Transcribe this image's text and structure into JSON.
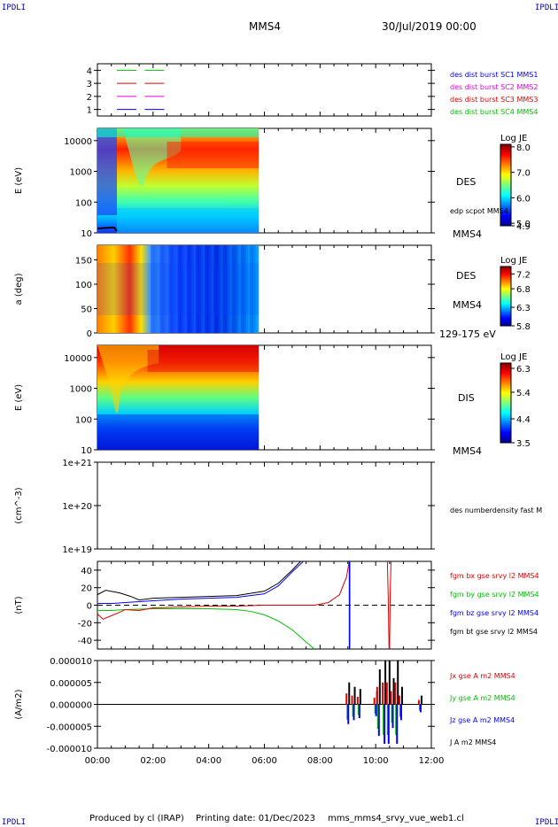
{
  "header": {
    "corner_tl": "IPDLI",
    "corner_tr": "IPDLI",
    "corner_bl": "IPDLI",
    "corner_br": "IPDLI",
    "spacecraft": "MMS4",
    "date": "30/Jul/2019 00:00"
  },
  "footer": {
    "produced_by": "Produced by cl (IRAP)",
    "printing_date": "Printing date: 01/Dec/2023",
    "file": "mms_mms4_srvy_vue_web1.cl"
  },
  "time_axis": {
    "ticks": [
      "00:00",
      "02:00",
      "04:00",
      "06:00",
      "08:00",
      "10:00",
      "12:00"
    ],
    "range_hours": [
      0,
      12
    ]
  },
  "colors": {
    "blue": "#0000ff",
    "magenta": "#e000e0",
    "red": "#e00000",
    "green": "#00c000",
    "black": "#000000"
  },
  "chart_data": [
    {
      "type": "line",
      "panel": "burst",
      "y_ticks": [
        "4",
        "3",
        "2",
        "1"
      ],
      "ylim": [
        0.5,
        4.5
      ],
      "legend": [
        {
          "name": "des dist burst SC1 MMS1",
          "color": "#0000ff",
          "level": 1
        },
        {
          "name": "des dist burst SC2 MMS2",
          "color": "#e000e0",
          "level": 2
        },
        {
          "name": "des dist burst SC3 MMS3",
          "color": "#e00000",
          "level": 3
        },
        {
          "name": "des dist burst SC4 MMS4",
          "color": "#00c000",
          "level": 4
        }
      ],
      "segments_hours": [
        [
          0.7,
          1.4
        ],
        [
          1.7,
          2.4
        ]
      ]
    },
    {
      "type": "heatmap",
      "panel": "des-energy",
      "ylabel": "E (eV)",
      "yscale": "log",
      "y_ticks": [
        "10000",
        "1000",
        "100",
        "10"
      ],
      "ylim": [
        10,
        25000
      ],
      "data_end_hours": 5.8,
      "colorbar": {
        "title": "Log JE",
        "ticks": [
          "8.0",
          "7.0",
          "6.0",
          "5.0",
          "4.9"
        ],
        "range": [
          4.9,
          8.1
        ]
      },
      "right_labels": [
        "DES",
        "edp scpot MMS4",
        "MMS4"
      ]
    },
    {
      "type": "heatmap",
      "panel": "des-pitch",
      "ylabel": "a (deg)",
      "y_ticks": [
        "150",
        "100",
        "50",
        "0"
      ],
      "ylim": [
        0,
        180
      ],
      "data_end_hours": 5.8,
      "colorbar": {
        "title": "Log JE",
        "ticks": [
          "7.2",
          "6.8",
          "6.3",
          "5.8"
        ],
        "range": [
          5.8,
          7.4
        ]
      },
      "right_labels": [
        "DES",
        "MMS4",
        "129-175 eV"
      ]
    },
    {
      "type": "heatmap",
      "panel": "dis-energy",
      "ylabel": "E (eV)",
      "yscale": "log",
      "y_ticks": [
        "10000",
        "1000",
        "100",
        "10"
      ],
      "ylim": [
        10,
        25000
      ],
      "data_end_hours": 5.8,
      "colorbar": {
        "title": "Log JE",
        "ticks": [
          "6.3",
          "5.4",
          "4.4",
          "3.5"
        ],
        "range": [
          3.5,
          6.5
        ]
      },
      "right_labels": [
        "DIS",
        "MMS4"
      ]
    },
    {
      "type": "line",
      "panel": "density",
      "ylabel": "(cm^-3)",
      "yscale": "log",
      "y_ticks": [
        "1e+21",
        "1e+20",
        "1e+19"
      ],
      "ylim": [
        1e+19,
        1e+21
      ],
      "legend": [
        {
          "name": "des numberdensity fast M",
          "color": "#000000"
        }
      ]
    },
    {
      "type": "line",
      "panel": "fgm",
      "ylabel": "(nT)",
      "y_ticks": [
        "40",
        "20",
        "0",
        "-20",
        "-40"
      ],
      "ylim": [
        -50,
        50
      ],
      "legend": [
        {
          "name": "fgm bx gse srvy l2 MMS4",
          "color": "#e00000"
        },
        {
          "name": "fgm by gse srvy l2 MMS4",
          "color": "#00c000"
        },
        {
          "name": "fgm bz gse srvy l2 MMS4",
          "color": "#0000ff"
        },
        {
          "name": "fgm bt gse srvy l2 MMS4",
          "color": "#000000"
        }
      ],
      "series": [
        {
          "color": "#000000",
          "x": [
            0,
            0.3,
            0.8,
            1.2,
            1.5,
            2,
            3,
            4,
            5,
            6,
            6.5,
            7,
            7.3
          ],
          "y": [
            12,
            17,
            14,
            10,
            6,
            8,
            9,
            10,
            11,
            16,
            25,
            40,
            50
          ]
        },
        {
          "color": "#0000ff",
          "x": [
            0,
            0.5,
            1,
            1.5,
            2,
            3,
            4,
            5,
            6,
            6.5,
            7,
            7.4
          ],
          "y": [
            2,
            2,
            3,
            4,
            5,
            7,
            8,
            9,
            13,
            22,
            38,
            50
          ]
        },
        {
          "color": "#00c000",
          "x": [
            0,
            0.5,
            1,
            2,
            3,
            4,
            5,
            5.5,
            6,
            6.5,
            7,
            7.5,
            7.8
          ],
          "y": [
            -6,
            -6,
            -5,
            -4,
            -4,
            -4,
            -5,
            -7,
            -11,
            -18,
            -28,
            -42,
            -50
          ]
        },
        {
          "color": "#e00000",
          "x": [
            0,
            0.2,
            0.5,
            0.8,
            1,
            1.5,
            2,
            3,
            4,
            5,
            6,
            7,
            7.8,
            8.3,
            8.7,
            8.95,
            9.05
          ],
          "y": [
            -10,
            -16,
            -12,
            -8,
            -5,
            -6,
            -3,
            -2,
            -1,
            -1,
            0,
            0,
            0,
            3,
            12,
            32,
            50
          ]
        },
        {
          "color": "#0000ff",
          "x": [
            9.05,
            9.05,
            9.07,
            9.07
          ],
          "y": [
            50,
            -50,
            -50,
            50
          ]
        },
        {
          "color": "#e00000",
          "x": [
            10.42,
            10.45,
            10.48,
            10.5,
            10.52,
            10.55
          ],
          "y": [
            50,
            10,
            -50,
            -50,
            10,
            50
          ]
        }
      ]
    },
    {
      "type": "line",
      "panel": "current",
      "ylabel": "(A/m2)",
      "y_ticks": [
        "0.000010",
        "0.000005",
        "0.000000",
        "-0.000005",
        "-0.000010"
      ],
      "ylim": [
        -1e-05,
        1e-05
      ],
      "legend": [
        {
          "name": "Jx gse A m2 MMS4",
          "color": "#e00000"
        },
        {
          "name": "Jy gse A m2 MMS4",
          "color": "#00c000"
        },
        {
          "name": "Jz gse A m2 MMS4",
          "color": "#0000ff"
        },
        {
          "name": "J A m2 MMS4",
          "color": "#000000"
        }
      ],
      "spikes": [
        {
          "t": 9.0,
          "amp": 5e-06
        },
        {
          "t": 9.2,
          "amp": 4e-06
        },
        {
          "t": 9.4,
          "amp": 3.5e-06
        },
        {
          "t": 10.0,
          "amp": 3e-06
        },
        {
          "t": 10.1,
          "amp": 8e-06
        },
        {
          "t": 10.3,
          "amp": 1e-05
        },
        {
          "t": 10.45,
          "amp": 1e-05
        },
        {
          "t": 10.6,
          "amp": 6e-06
        },
        {
          "t": 10.75,
          "amp": 1e-05
        },
        {
          "t": 10.9,
          "amp": 4e-06
        },
        {
          "t": 11.6,
          "amp": 2e-06
        }
      ]
    }
  ]
}
